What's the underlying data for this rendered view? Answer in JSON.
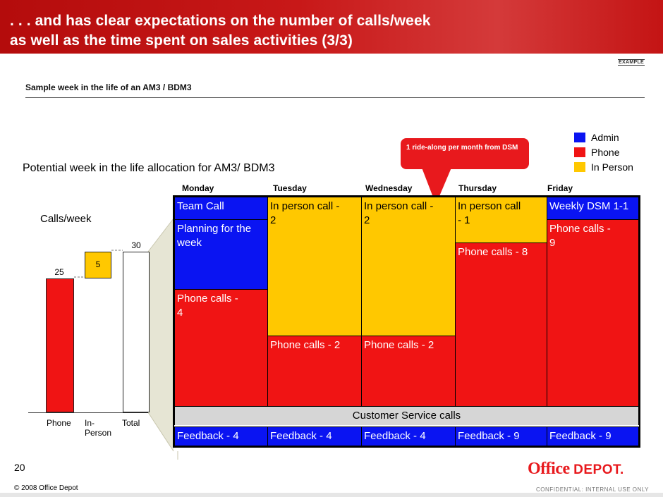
{
  "header": {
    "title_line1": ". . . and has clear expectations on the number of calls/week",
    "title_line2": "as well as the time spent on sales activities (3/3)"
  },
  "example_tag": "EXAMPLE",
  "subtitle": "Sample week in the life of an AM3 / BDM3",
  "legend": [
    {
      "label": "Admin",
      "color": "#0a14f2"
    },
    {
      "label": "Phone",
      "color": "#f01414"
    },
    {
      "label": "In Person",
      "color": "#ffc800"
    }
  ],
  "callout": "1 ride-along per month from DSM",
  "potential_title": "Potential week in the life allocation for AM3/ BDM3",
  "calls_chart": {
    "title": "Calls/week",
    "chart_data": {
      "type": "bar",
      "categories": [
        "Phone",
        "In-\nPerson",
        "Total"
      ],
      "values": [
        25,
        5,
        30
      ],
      "value_labels": [
        "25",
        "5",
        "30"
      ],
      "style": "waterfall"
    }
  },
  "days": [
    "Monday",
    "Tuesday",
    "Wednesday",
    "Thursday",
    "Friday"
  ],
  "schedule": {
    "monday": {
      "team_call": "Team Call",
      "planning": "Planning for the week",
      "phone": "Phone calls - 4",
      "feedback": "Feedback - 4"
    },
    "tuesday": {
      "in_person": "In person call - 2",
      "phone": "Phone calls  - 2",
      "feedback": "Feedback - 4"
    },
    "wednesday": {
      "in_person": "In person call - 2",
      "phone": "Phone calls  - 2",
      "feedback": "Feedback - 4"
    },
    "thursday": {
      "in_person": "In person call - 1",
      "phone": "Phone calls  - 8",
      "feedback": "Feedback - 9"
    },
    "friday": {
      "weekly": "Weekly DSM 1-1",
      "phone": "Phone calls - 9",
      "feedback": "Feedback - 9"
    },
    "customer_service": "Customer Service calls"
  },
  "footer": {
    "page_number": "20",
    "copyright": "© 2008 Office Depot",
    "logo_office": "Office",
    "logo_depot": "DEPOT.",
    "confidential": "CONFIDENTIAL: INTERNAL USE ONLY"
  }
}
